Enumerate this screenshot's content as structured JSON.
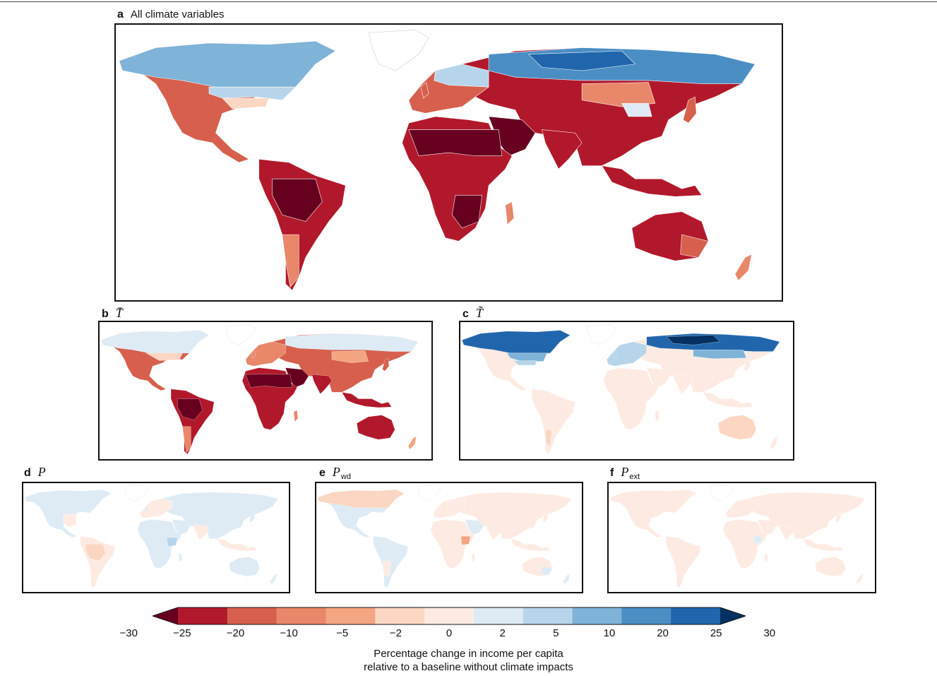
{
  "panels": {
    "a": {
      "label": "a",
      "title": "All climate variables"
    },
    "b": {
      "label": "b",
      "title": "T̄"
    },
    "c": {
      "label": "c",
      "title": "T̃"
    },
    "d": {
      "label": "d",
      "title": "P"
    },
    "e": {
      "label": "e",
      "title": "P",
      "subscript": "wd"
    },
    "f": {
      "label": "f",
      "title": "P",
      "subscript": "ext"
    }
  },
  "colorbar": {
    "ticks": [
      "−30",
      "−25",
      "−20",
      "−10",
      "−5",
      "−2",
      "0",
      "2",
      "5",
      "10",
      "20",
      "25",
      "30"
    ],
    "colors": [
      "#67001f",
      "#b2182b",
      "#d6604d",
      "#e9876a",
      "#f4a582",
      "#fbd6c2",
      "#fdebe3",
      "#deebf5",
      "#b7d5ea",
      "#7fb3d8",
      "#4b8ec4",
      "#2166ac",
      "#053061"
    ],
    "label_line1": "Percentage change in income per capita",
    "label_line2": "relative to a baseline without climate impacts"
  }
}
